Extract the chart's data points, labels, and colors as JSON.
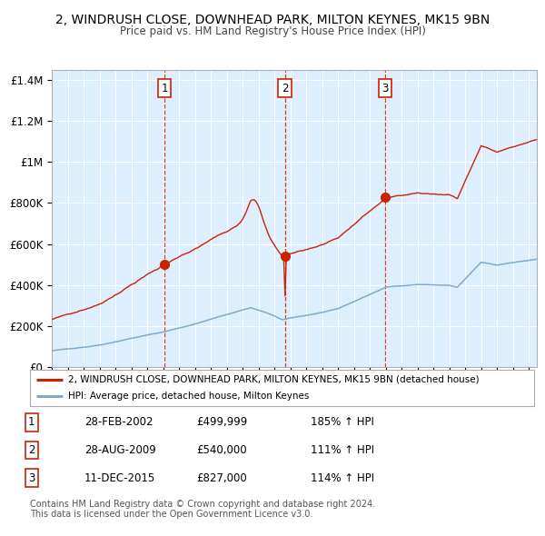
{
  "title1": "2, WINDRUSH CLOSE, DOWNHEAD PARK, MILTON KEYNES, MK15 9BN",
  "title2": "Price paid vs. HM Land Registry's House Price Index (HPI)",
  "xlim": [
    1995.0,
    2025.5
  ],
  "ylim": [
    0,
    1450000
  ],
  "yticks": [
    0,
    200000,
    400000,
    600000,
    800000,
    1000000,
    1200000,
    1400000
  ],
  "ytick_labels": [
    "£0",
    "£200K",
    "£400K",
    "£600K",
    "£800K",
    "£1M",
    "£1.2M",
    "£1.4M"
  ],
  "sale1_date": 2002.08,
  "sale1_price": 499999,
  "sale1_label": "1",
  "sale2_date": 2009.66,
  "sale2_price": 540000,
  "sale2_label": "2",
  "sale3_date": 2015.95,
  "sale3_price": 827000,
  "sale3_label": "3",
  "legend_line1": "2, WINDRUSH CLOSE, DOWNHEAD PARK, MILTON KEYNES, MK15 9BN (detached house)",
  "legend_line2": "HPI: Average price, detached house, Milton Keynes",
  "table_rows": [
    [
      "1",
      "28-FEB-2002",
      "£499,999",
      "185% ↑ HPI"
    ],
    [
      "2",
      "28-AUG-2009",
      "£540,000",
      "111% ↑ HPI"
    ],
    [
      "3",
      "11-DEC-2015",
      "£827,000",
      "114% ↑ HPI"
    ]
  ],
  "footer1": "Contains HM Land Registry data © Crown copyright and database right 2024.",
  "footer2": "This data is licensed under the Open Government Licence v3.0.",
  "bg_color": "#ddeeff",
  "red_line_color": "#cc2200",
  "blue_line_color": "#7faacc",
  "dot_color": "#cc2200",
  "vline_color": "#cc2200",
  "grid_color": "#ffffff"
}
